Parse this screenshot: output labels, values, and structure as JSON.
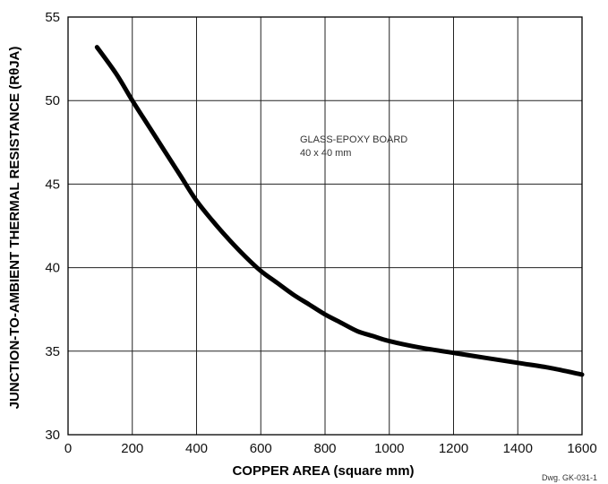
{
  "chart_data": {
    "type": "line",
    "xlabel": "COPPER AREA (square mm)",
    "ylabel": "JUNCTION-TO-AMBIENT THERMAL RESISTANCE (RθJA)",
    "xlim": [
      0,
      1600
    ],
    "ylim": [
      30,
      55
    ],
    "xticks": [
      0,
      200,
      400,
      600,
      800,
      1000,
      1200,
      1400,
      1600
    ],
    "yticks": [
      30,
      35,
      40,
      45,
      50,
      55
    ],
    "grid": true,
    "series": [
      {
        "x": [
          90,
          150,
          200,
          250,
          300,
          350,
          400,
          450,
          500,
          550,
          600,
          650,
          700,
          750,
          800,
          850,
          900,
          950,
          1000,
          1100,
          1200,
          1300,
          1400,
          1500,
          1600
        ],
        "y": [
          53.2,
          51.6,
          50.0,
          48.5,
          47.0,
          45.5,
          44.0,
          42.8,
          41.7,
          40.7,
          39.8,
          39.1,
          38.4,
          37.8,
          37.2,
          36.7,
          36.2,
          35.9,
          35.6,
          35.2,
          34.9,
          34.6,
          34.3,
          34.0,
          33.6
        ],
        "color": "#000000"
      }
    ],
    "annotations": [
      "GLASS-EPOXY BOARD",
      "40 x 40 mm"
    ],
    "footnote": "Dwg. GK-031-1"
  }
}
